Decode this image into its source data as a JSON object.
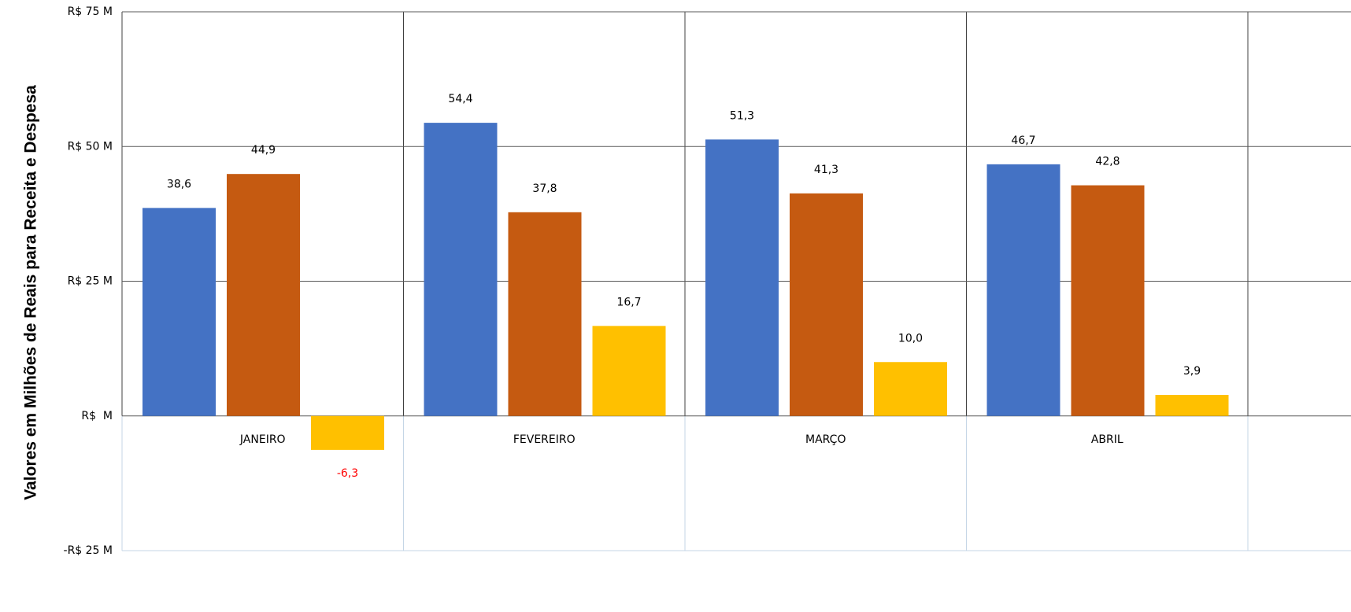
{
  "chart_data": {
    "type": "bar",
    "y_axis_label": "Valores em Milhões de Reais para Receita e Despesa",
    "categories": [
      "JANEIRO",
      "FEVEREIRO",
      "MARÇO",
      "ABRIL"
    ],
    "series": [
      {
        "color": "#4472c4",
        "values": [
          38.6,
          54.4,
          51.3,
          46.7
        ],
        "value_labels": [
          "38,6",
          "54,4",
          "51,3",
          "46,7"
        ]
      },
      {
        "color": "#c55a11",
        "values": [
          44.9,
          37.8,
          41.3,
          42.8
        ],
        "value_labels": [
          "44,9",
          "37,8",
          "41,3",
          "42,8"
        ]
      },
      {
        "color": "#ffc000",
        "values": [
          -6.3,
          16.7,
          10.0,
          3.9
        ],
        "value_labels": [
          "-6,3",
          "16,7",
          "10,0",
          "3,9"
        ]
      }
    ],
    "negative_label_color": "#ff0000",
    "ylim": [
      -25,
      75
    ],
    "yticks": [
      {
        "value": -25,
        "label": "-R$ 25 M"
      },
      {
        "value": 0,
        "label": "R$  M"
      },
      {
        "value": 25,
        "label": "R$ 25 M"
      },
      {
        "value": 50,
        "label": "R$ 50 M"
      },
      {
        "value": 75,
        "label": "R$ 75 M"
      }
    ],
    "grid": true
  }
}
